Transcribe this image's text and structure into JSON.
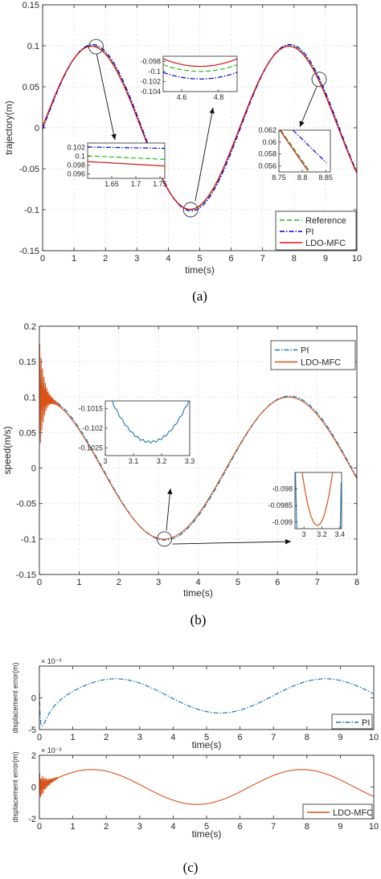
{
  "chart_data": [
    {
      "type": "line",
      "caption": "(a)",
      "xlabel": "time(s)",
      "ylabel": "trajectory(m)",
      "xlim": [
        0,
        10
      ],
      "ylim": [
        -0.15,
        0.15
      ],
      "xticks": [
        0,
        1,
        2,
        3,
        4,
        5,
        6,
        7,
        8,
        9,
        10
      ],
      "yticks": [
        -0.15,
        -0.1,
        -0.05,
        0,
        0.05,
        0.1,
        0.15
      ],
      "ytick_labels": [
        "-0.15",
        "-0.1",
        "-0.05",
        "0",
        "0.05",
        "0.1",
        "0.15"
      ],
      "grid": true,
      "legend_position": "bottom-right",
      "series": [
        {
          "name": "Reference",
          "color": "#22bb22",
          "style": "dashed",
          "amplitude": 0.1,
          "period": 6.28,
          "phase": 0
        },
        {
          "name": "PI",
          "color": "#0000dd",
          "style": "dashdot",
          "amplitude": 0.1015,
          "period": 6.28,
          "phase": 0.1
        },
        {
          "name": "LDO-MFC",
          "color": "#dd1111",
          "style": "solid",
          "amplitude": 0.0995,
          "period": 6.28,
          "phase": -0.05
        }
      ],
      "insets": [
        {
          "xlim": [
            1.6,
            1.76
          ],
          "ylim": [
            0.095,
            0.103
          ],
          "xticks": [
            1.65,
            1.7,
            1.75
          ],
          "xtick_labels": [
            "1.65",
            "1.7",
            "1.75"
          ],
          "yticks": [
            0.096,
            0.098,
            0.1,
            0.102
          ],
          "ytick_labels": [
            "0.096",
            "0.098",
            "0.1",
            "0.102"
          ],
          "series": [
            {
              "color": "#0000dd",
              "style": "dashdot",
              "y": [
                0.1021,
                0.1018
              ]
            },
            {
              "color": "#22bb22",
              "style": "dashed",
              "y": [
                0.1001,
                0.0993
              ]
            },
            {
              "color": "#dd1111",
              "style": "solid",
              "y": [
                0.0988,
                0.0978
              ]
            }
          ]
        },
        {
          "xlim": [
            4.5,
            4.9
          ],
          "ylim": [
            -0.104,
            -0.097
          ],
          "xticks": [
            4.6,
            4.8
          ],
          "xtick_labels": [
            "4.6",
            "4.8"
          ],
          "yticks": [
            -0.104,
            -0.102,
            -0.1,
            -0.098
          ],
          "ytick_labels": [
            "-0.104",
            "-0.102",
            "-0.1",
            "-0.098"
          ],
          "series": [
            {
              "color": "#dd1111",
              "style": "solid",
              "y": [
                -0.0975,
                -0.099,
                -0.0976
              ]
            },
            {
              "color": "#22bb22",
              "style": "dashed",
              "y": [
                -0.0987,
                -0.1,
                -0.0988
              ]
            },
            {
              "color": "#0000dd",
              "style": "dashdot",
              "y": [
                -0.1002,
                -0.1015,
                -0.1004
              ]
            }
          ]
        },
        {
          "xlim": [
            8.75,
            8.86
          ],
          "ylim": [
            0.055,
            0.062
          ],
          "xticks": [
            8.75,
            8.8,
            8.85
          ],
          "xtick_labels": [
            "8.75",
            "8.8",
            "8.85"
          ],
          "yticks": [
            0.056,
            0.058,
            0.06,
            0.062
          ],
          "ytick_labels": [
            "0.056",
            "0.058",
            "0.06",
            "0.062"
          ],
          "series": [
            {
              "color": "#0000dd",
              "style": "dashdot",
              "pts": [
                [
                  8.78,
                  0.062
                ],
                [
                  8.852,
                  0.0565
                ]
              ]
            },
            {
              "color": "#22bb22",
              "style": "dashed",
              "pts": [
                [
                  8.754,
                  0.062
                ],
                [
                  8.815,
                  0.0552
                ]
              ]
            },
            {
              "color": "#dd1111",
              "style": "solid",
              "pts": [
                [
                  8.752,
                  0.062
                ],
                [
                  8.812,
                  0.0552
                ]
              ]
            }
          ]
        }
      ]
    },
    {
      "type": "line",
      "caption": "(b)",
      "xlabel": "time(s)",
      "ylabel": "speed(m/s)",
      "xlim": [
        0,
        8
      ],
      "ylim": [
        -0.15,
        0.2
      ],
      "xticks": [
        0,
        1,
        2,
        3,
        4,
        5,
        6,
        7,
        8
      ],
      "yticks": [
        -0.15,
        -0.1,
        -0.05,
        0,
        0.05,
        0.1,
        0.15,
        0.2
      ],
      "ytick_labels": [
        "-0.15",
        "-0.1",
        "-0.05",
        "0",
        "0.05",
        "0.1",
        "0.15",
        "0.2"
      ],
      "grid": true,
      "legend_position": "top-right",
      "series": [
        {
          "name": "PI",
          "color": "#1f77b4",
          "style": "dashdot"
        },
        {
          "name": "LDO-MFC",
          "color": "#d95319",
          "style": "solid"
        }
      ],
      "insets": [
        {
          "xlim": [
            3.0,
            3.3
          ],
          "ylim": [
            -0.1027,
            -0.1013
          ],
          "xticks": [
            3,
            3.1,
            3.2,
            3.3
          ],
          "xtick_labels": [
            "3",
            "3.1",
            "3.2",
            "3.3"
          ],
          "yticks": [
            -0.1025,
            -0.102,
            -0.1015
          ],
          "ytick_labels": [
            "-0.1025",
            "-0.102",
            "-0.1015"
          ]
        },
        {
          "xlim": [
            2.9,
            3.42
          ],
          "ylim": [
            -0.0992,
            -0.0975
          ],
          "xticks": [
            3,
            3.2,
            3.4
          ],
          "xtick_labels": [
            "3",
            "3.2",
            "3.4"
          ],
          "yticks": [
            -0.099,
            -0.0985,
            -0.098
          ],
          "ytick_labels": [
            "-0.099",
            "-0.0985",
            "-0.098"
          ]
        }
      ]
    },
    {
      "type": "line",
      "caption": "(c)",
      "xlabel": "time(s)",
      "ylabel": "displacement error(m)",
      "exponent": "× 10⁻³",
      "xlim": [
        0,
        10
      ],
      "ylim": [
        -5,
        5
      ],
      "xticks": [
        0,
        1,
        2,
        3,
        4,
        5,
        6,
        7,
        8,
        9,
        10
      ],
      "yticks": [
        -5,
        0
      ],
      "ytick_labels": [
        "-5",
        "0"
      ],
      "grid": false,
      "legend_position": "bottom-right",
      "series": [
        {
          "name": "PI",
          "color": "#1f77b4",
          "style": "dashdot"
        }
      ]
    },
    {
      "type": "line",
      "xlabel": "time(s)",
      "ylabel": "displacement error(m)",
      "exponent": "× 10⁻³",
      "xlim": [
        0,
        10
      ],
      "ylim": [
        -2,
        2
      ],
      "xticks": [
        0,
        1,
        2,
        3,
        4,
        5,
        6,
        7,
        8,
        9,
        10
      ],
      "yticks": [
        -2,
        0,
        2
      ],
      "ytick_labels": [
        "-2",
        "0",
        "2"
      ],
      "grid": false,
      "legend_position": "bottom-right",
      "series": [
        {
          "name": "LDO-MFC",
          "color": "#d95319",
          "style": "solid"
        }
      ]
    }
  ]
}
